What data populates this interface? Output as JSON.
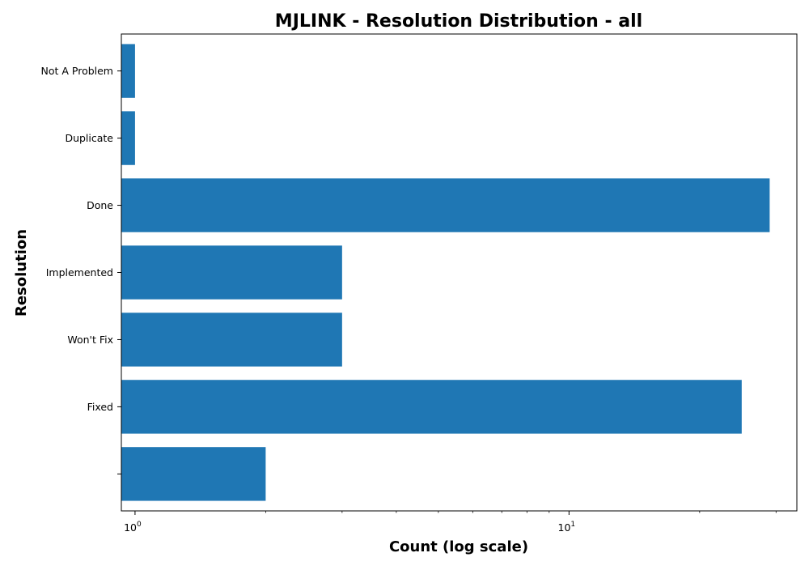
{
  "chart_data": {
    "type": "bar",
    "orientation": "horizontal",
    "title": "MJLINK - Resolution Distribution - all",
    "xlabel": "Count (log scale)",
    "ylabel": "Resolution",
    "x_scale": "log",
    "xlim": [
      0.93,
      33.5
    ],
    "x_ticks": [
      {
        "value": 1,
        "base": "10",
        "exp": "0"
      },
      {
        "value": 10,
        "base": "10",
        "exp": "1"
      }
    ],
    "grid": false,
    "bar_color": "#1f77b4",
    "categories": [
      "",
      "Fixed",
      "Won't Fix",
      "Implemented",
      "Done",
      "Duplicate",
      "Not A Problem"
    ],
    "values": [
      2,
      25,
      3,
      3,
      29,
      1,
      1
    ]
  }
}
